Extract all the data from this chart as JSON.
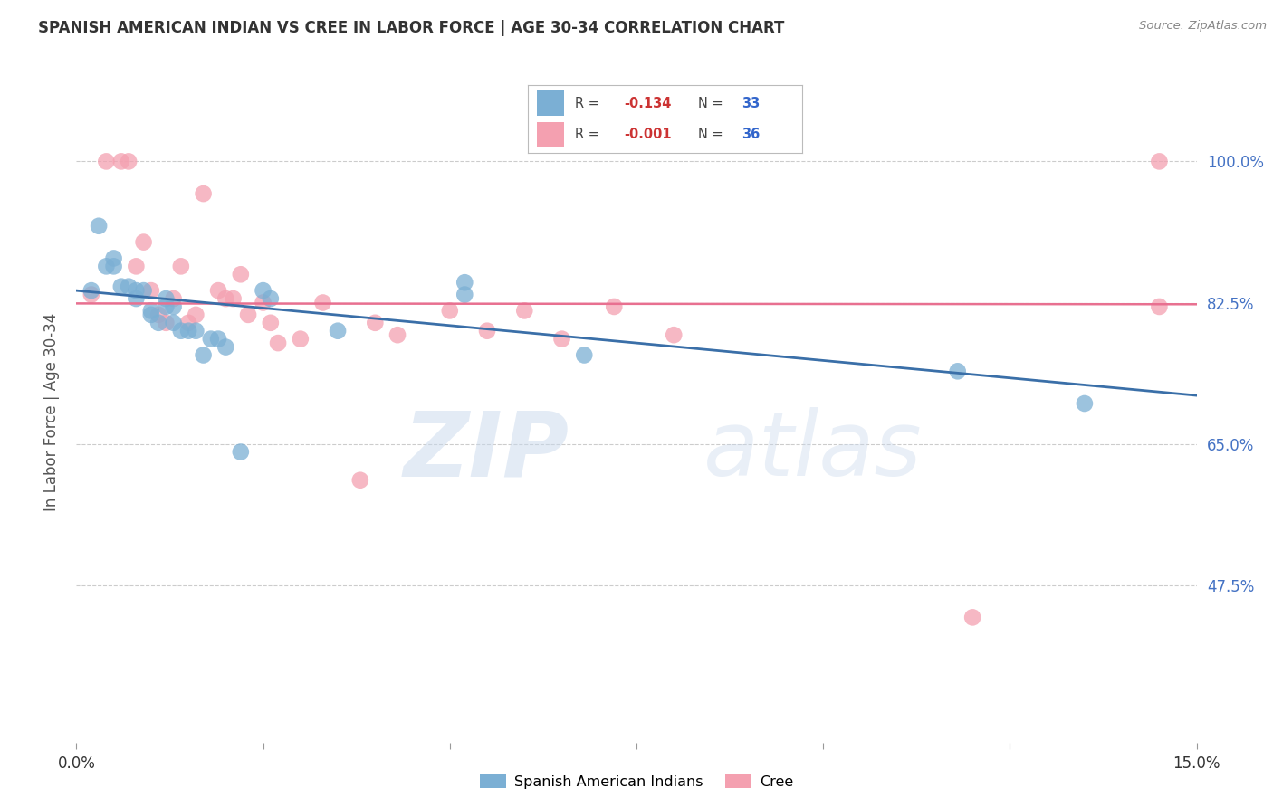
{
  "title": "SPANISH AMERICAN INDIAN VS CREE IN LABOR FORCE | AGE 30-34 CORRELATION CHART",
  "source": "Source: ZipAtlas.com",
  "ylabel": "In Labor Force | Age 30-34",
  "xlim": [
    0.0,
    0.15
  ],
  "ylim": [
    0.28,
    1.1
  ],
  "yticks": [
    0.475,
    0.65,
    0.825,
    1.0
  ],
  "ytick_labels": [
    "47.5%",
    "65.0%",
    "82.5%",
    "100.0%"
  ],
  "xticks": [
    0.0,
    0.025,
    0.05,
    0.075,
    0.1,
    0.125,
    0.15
  ],
  "legend_label1": "Spanish American Indians",
  "legend_label2": "Cree",
  "R1": "-0.134",
  "N1": "33",
  "R2": "-0.001",
  "N2": "36",
  "blue_color": "#7BAFD4",
  "pink_color": "#F4A0B0",
  "blue_line_color": "#3A6FA8",
  "pink_line_color": "#E87090",
  "blue_line_x0": 0.0,
  "blue_line_y0": 0.84,
  "blue_line_x1": 0.15,
  "blue_line_y1": 0.71,
  "pink_line_x0": 0.0,
  "pink_line_y0": 0.824,
  "pink_line_x1": 0.15,
  "pink_line_y1": 0.823,
  "blue_x": [
    0.002,
    0.003,
    0.004,
    0.005,
    0.005,
    0.006,
    0.007,
    0.008,
    0.008,
    0.009,
    0.01,
    0.01,
    0.011,
    0.012,
    0.012,
    0.013,
    0.013,
    0.014,
    0.015,
    0.016,
    0.017,
    0.018,
    0.019,
    0.02,
    0.022,
    0.025,
    0.026,
    0.035,
    0.052,
    0.052,
    0.068,
    0.118,
    0.135
  ],
  "blue_y": [
    0.84,
    0.92,
    0.87,
    0.88,
    0.87,
    0.845,
    0.845,
    0.84,
    0.83,
    0.84,
    0.815,
    0.81,
    0.8,
    0.83,
    0.82,
    0.82,
    0.8,
    0.79,
    0.79,
    0.79,
    0.76,
    0.78,
    0.78,
    0.77,
    0.64,
    0.84,
    0.83,
    0.79,
    0.85,
    0.835,
    0.76,
    0.74,
    0.7
  ],
  "pink_x": [
    0.002,
    0.004,
    0.006,
    0.007,
    0.008,
    0.009,
    0.01,
    0.011,
    0.012,
    0.013,
    0.014,
    0.015,
    0.016,
    0.017,
    0.019,
    0.02,
    0.021,
    0.022,
    0.023,
    0.025,
    0.026,
    0.027,
    0.03,
    0.033,
    0.038,
    0.04,
    0.043,
    0.05,
    0.055,
    0.06,
    0.065,
    0.072,
    0.08,
    0.12,
    0.145,
    0.145
  ],
  "pink_y": [
    0.835,
    1.0,
    1.0,
    1.0,
    0.87,
    0.9,
    0.84,
    0.81,
    0.8,
    0.83,
    0.87,
    0.8,
    0.81,
    0.96,
    0.84,
    0.83,
    0.83,
    0.86,
    0.81,
    0.825,
    0.8,
    0.775,
    0.78,
    0.825,
    0.605,
    0.8,
    0.785,
    0.815,
    0.79,
    0.815,
    0.78,
    0.82,
    0.785,
    0.435,
    0.82,
    1.0
  ]
}
